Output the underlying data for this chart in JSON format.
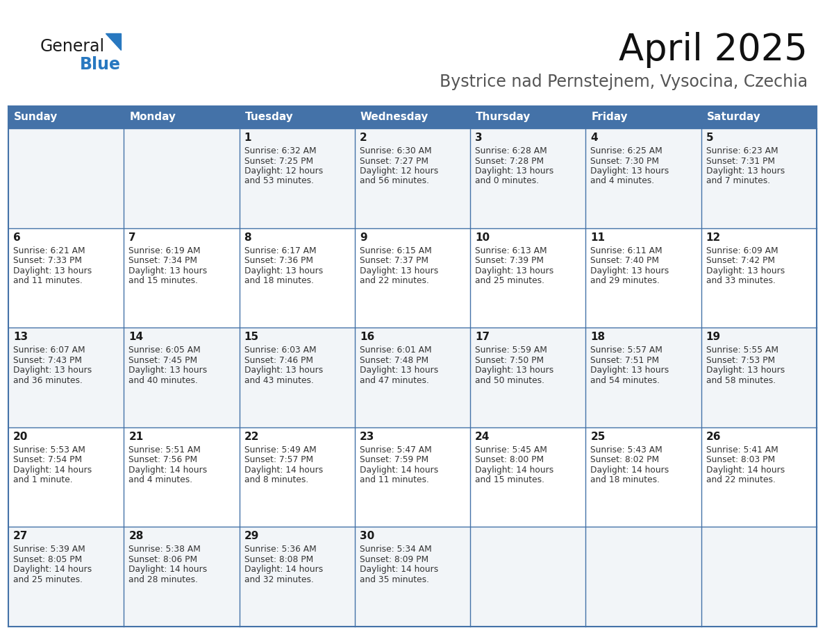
{
  "title": "April 2025",
  "subtitle": "Bystrice nad Pernstejnem, Vysocina, Czechia",
  "header_bg": "#4472a8",
  "header_text": "#ffffff",
  "cell_bg_light": "#f2f5f8",
  "cell_bg_white": "#ffffff",
  "grid_color": "#4472a8",
  "text_color": "#333333",
  "day_names": [
    "Sunday",
    "Monday",
    "Tuesday",
    "Wednesday",
    "Thursday",
    "Friday",
    "Saturday"
  ],
  "logo_color_general": "#1a1a1a",
  "logo_color_blue": "#2878c0",
  "logo_triangle_color": "#2878c0",
  "days": [
    {
      "day": 1,
      "col": 2,
      "row": 0,
      "sunrise": "6:32 AM",
      "sunset": "7:25 PM",
      "daylight_h": "12 hours",
      "daylight_m": "53 minutes"
    },
    {
      "day": 2,
      "col": 3,
      "row": 0,
      "sunrise": "6:30 AM",
      "sunset": "7:27 PM",
      "daylight_h": "12 hours",
      "daylight_m": "56 minutes"
    },
    {
      "day": 3,
      "col": 4,
      "row": 0,
      "sunrise": "6:28 AM",
      "sunset": "7:28 PM",
      "daylight_h": "13 hours",
      "daylight_m": "0 minutes"
    },
    {
      "day": 4,
      "col": 5,
      "row": 0,
      "sunrise": "6:25 AM",
      "sunset": "7:30 PM",
      "daylight_h": "13 hours",
      "daylight_m": "4 minutes"
    },
    {
      "day": 5,
      "col": 6,
      "row": 0,
      "sunrise": "6:23 AM",
      "sunset": "7:31 PM",
      "daylight_h": "13 hours",
      "daylight_m": "7 minutes"
    },
    {
      "day": 6,
      "col": 0,
      "row": 1,
      "sunrise": "6:21 AM",
      "sunset": "7:33 PM",
      "daylight_h": "13 hours",
      "daylight_m": "11 minutes"
    },
    {
      "day": 7,
      "col": 1,
      "row": 1,
      "sunrise": "6:19 AM",
      "sunset": "7:34 PM",
      "daylight_h": "13 hours",
      "daylight_m": "15 minutes"
    },
    {
      "day": 8,
      "col": 2,
      "row": 1,
      "sunrise": "6:17 AM",
      "sunset": "7:36 PM",
      "daylight_h": "13 hours",
      "daylight_m": "18 minutes"
    },
    {
      "day": 9,
      "col": 3,
      "row": 1,
      "sunrise": "6:15 AM",
      "sunset": "7:37 PM",
      "daylight_h": "13 hours",
      "daylight_m": "22 minutes"
    },
    {
      "day": 10,
      "col": 4,
      "row": 1,
      "sunrise": "6:13 AM",
      "sunset": "7:39 PM",
      "daylight_h": "13 hours",
      "daylight_m": "25 minutes"
    },
    {
      "day": 11,
      "col": 5,
      "row": 1,
      "sunrise": "6:11 AM",
      "sunset": "7:40 PM",
      "daylight_h": "13 hours",
      "daylight_m": "29 minutes"
    },
    {
      "day": 12,
      "col": 6,
      "row": 1,
      "sunrise": "6:09 AM",
      "sunset": "7:42 PM",
      "daylight_h": "13 hours",
      "daylight_m": "33 minutes"
    },
    {
      "day": 13,
      "col": 0,
      "row": 2,
      "sunrise": "6:07 AM",
      "sunset": "7:43 PM",
      "daylight_h": "13 hours",
      "daylight_m": "36 minutes"
    },
    {
      "day": 14,
      "col": 1,
      "row": 2,
      "sunrise": "6:05 AM",
      "sunset": "7:45 PM",
      "daylight_h": "13 hours",
      "daylight_m": "40 minutes"
    },
    {
      "day": 15,
      "col": 2,
      "row": 2,
      "sunrise": "6:03 AM",
      "sunset": "7:46 PM",
      "daylight_h": "13 hours",
      "daylight_m": "43 minutes"
    },
    {
      "day": 16,
      "col": 3,
      "row": 2,
      "sunrise": "6:01 AM",
      "sunset": "7:48 PM",
      "daylight_h": "13 hours",
      "daylight_m": "47 minutes"
    },
    {
      "day": 17,
      "col": 4,
      "row": 2,
      "sunrise": "5:59 AM",
      "sunset": "7:50 PM",
      "daylight_h": "13 hours",
      "daylight_m": "50 minutes"
    },
    {
      "day": 18,
      "col": 5,
      "row": 2,
      "sunrise": "5:57 AM",
      "sunset": "7:51 PM",
      "daylight_h": "13 hours",
      "daylight_m": "54 minutes"
    },
    {
      "day": 19,
      "col": 6,
      "row": 2,
      "sunrise": "5:55 AM",
      "sunset": "7:53 PM",
      "daylight_h": "13 hours",
      "daylight_m": "58 minutes"
    },
    {
      "day": 20,
      "col": 0,
      "row": 3,
      "sunrise": "5:53 AM",
      "sunset": "7:54 PM",
      "daylight_h": "14 hours",
      "daylight_m": "1 minute"
    },
    {
      "day": 21,
      "col": 1,
      "row": 3,
      "sunrise": "5:51 AM",
      "sunset": "7:56 PM",
      "daylight_h": "14 hours",
      "daylight_m": "4 minutes"
    },
    {
      "day": 22,
      "col": 2,
      "row": 3,
      "sunrise": "5:49 AM",
      "sunset": "7:57 PM",
      "daylight_h": "14 hours",
      "daylight_m": "8 minutes"
    },
    {
      "day": 23,
      "col": 3,
      "row": 3,
      "sunrise": "5:47 AM",
      "sunset": "7:59 PM",
      "daylight_h": "14 hours",
      "daylight_m": "11 minutes"
    },
    {
      "day": 24,
      "col": 4,
      "row": 3,
      "sunrise": "5:45 AM",
      "sunset": "8:00 PM",
      "daylight_h": "14 hours",
      "daylight_m": "15 minutes"
    },
    {
      "day": 25,
      "col": 5,
      "row": 3,
      "sunrise": "5:43 AM",
      "sunset": "8:02 PM",
      "daylight_h": "14 hours",
      "daylight_m": "18 minutes"
    },
    {
      "day": 26,
      "col": 6,
      "row": 3,
      "sunrise": "5:41 AM",
      "sunset": "8:03 PM",
      "daylight_h": "14 hours",
      "daylight_m": "22 minutes"
    },
    {
      "day": 27,
      "col": 0,
      "row": 4,
      "sunrise": "5:39 AM",
      "sunset": "8:05 PM",
      "daylight_h": "14 hours",
      "daylight_m": "25 minutes"
    },
    {
      "day": 28,
      "col": 1,
      "row": 4,
      "sunrise": "5:38 AM",
      "sunset": "8:06 PM",
      "daylight_h": "14 hours",
      "daylight_m": "28 minutes"
    },
    {
      "day": 29,
      "col": 2,
      "row": 4,
      "sunrise": "5:36 AM",
      "sunset": "8:08 PM",
      "daylight_h": "14 hours",
      "daylight_m": "32 minutes"
    },
    {
      "day": 30,
      "col": 3,
      "row": 4,
      "sunrise": "5:34 AM",
      "sunset": "8:09 PM",
      "daylight_h": "14 hours",
      "daylight_m": "35 minutes"
    }
  ],
  "n_rows": 5,
  "n_cols": 7
}
